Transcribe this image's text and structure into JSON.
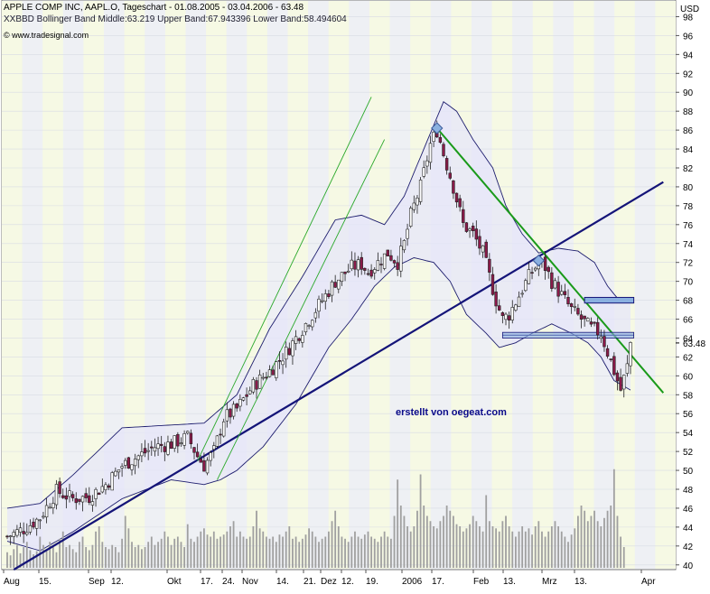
{
  "header": {
    "title_line": "APPLE COMP INC, AAPL.O, Tageschart - 01.08.2005 - 03.04.2006 - 63.48",
    "indicator_line": "XXBBD Bollinger Band Middle:63.219 Upper Band:67.943396 Lower Band:58.494604",
    "source": "© www.tradesignal.com"
  },
  "watermark": "erstellt von oegeat.com",
  "currency": "USD",
  "last_price_label": "63.48",
  "colors": {
    "background": "#ffffff",
    "plot_area": "#eef0f4",
    "alt_band": "#f6f9e4",
    "bollinger_fill": "#e6e6fa",
    "bollinger_line": "#1e1e6e",
    "candle_up": "#ffffff",
    "candle_down": "#8b1a4a",
    "trendline_support": "#141478",
    "trendline_downtrend": "#1a9a1a",
    "channel_thin": "#2aa82a",
    "volume": "#a0a0a0",
    "marker": "#8ab0e0"
  },
  "chart_data": {
    "type": "candlestick",
    "title": "APPLE COMP INC, AAPL.O, Tageschart - 01.08.2005 - 03.04.2006 - 63.48",
    "x_tick_labels": [
      "Aug",
      "15.",
      "Sep",
      "12.",
      "Okt",
      "17.",
      "24.",
      "Nov",
      "14.",
      "21.",
      "Dez",
      "12.",
      "19.",
      "2006",
      "17.",
      "Feb",
      "13.",
      "Mrz",
      "13.",
      "Apr"
    ],
    "y_tick_labels": [
      "40",
      "42",
      "44",
      "46",
      "48",
      "50",
      "52",
      "54",
      "56",
      "58",
      "60",
      "62",
      "64",
      "66",
      "68",
      "70",
      "72",
      "74",
      "76",
      "78",
      "80",
      "82",
      "84",
      "86",
      "88",
      "90",
      "92",
      "94",
      "96",
      "98"
    ],
    "ylim": [
      39.5,
      99
    ],
    "yunit": "USD",
    "last_price": 63.48,
    "bollinger_last": {
      "middle": 63.219,
      "upper": 67.943396,
      "lower": 58.494604
    },
    "close_path_approx": [
      [
        0,
        43.0
      ],
      [
        5,
        43.8
      ],
      [
        10,
        45.0
      ],
      [
        15,
        47.8
      ],
      [
        20,
        47.0
      ],
      [
        25,
        47.2
      ],
      [
        30,
        48.5
      ],
      [
        35,
        50.5
      ],
      [
        40,
        51.5
      ],
      [
        45,
        52.5
      ],
      [
        50,
        52.8
      ],
      [
        55,
        53.5
      ],
      [
        58,
        51.5
      ],
      [
        60,
        50.5
      ],
      [
        63,
        52.0
      ],
      [
        66,
        55.5
      ],
      [
        70,
        56.5
      ],
      [
        75,
        59.0
      ],
      [
        80,
        60.5
      ],
      [
        85,
        62.5
      ],
      [
        90,
        65.0
      ],
      [
        95,
        67.5
      ],
      [
        100,
        70.0
      ],
      [
        105,
        71.5
      ],
      [
        108,
        71.8
      ],
      [
        110,
        71.0
      ],
      [
        113,
        72.0
      ],
      [
        116,
        73.0
      ],
      [
        119,
        72.0
      ],
      [
        121,
        74.0
      ],
      [
        123,
        77.0
      ],
      [
        126,
        80.0
      ],
      [
        129,
        84.5
      ],
      [
        131,
        86.0
      ],
      [
        133,
        83.5
      ],
      [
        136,
        80.0
      ],
      [
        139,
        76.0
      ],
      [
        142,
        75.0
      ],
      [
        145,
        73.0
      ],
      [
        147,
        70.5
      ],
      [
        149,
        68.0
      ],
      [
        151,
        66.0
      ],
      [
        153,
        66.5
      ],
      [
        156,
        68.5
      ],
      [
        159,
        70.5
      ],
      [
        162,
        72.0
      ],
      [
        164,
        71.5
      ],
      [
        166,
        70.0
      ],
      [
        169,
        68.5
      ],
      [
        172,
        67.0
      ],
      [
        175,
        66.0
      ],
      [
        178,
        65.0
      ],
      [
        181,
        64.5
      ],
      [
        183,
        62.5
      ],
      [
        185,
        60.5
      ],
      [
        187,
        58.5
      ],
      [
        189,
        61.0
      ],
      [
        190,
        63.5
      ]
    ],
    "bollinger_upper_approx": [
      [
        0,
        46.0
      ],
      [
        10,
        46.5
      ],
      [
        20,
        49.5
      ],
      [
        35,
        54.5
      ],
      [
        50,
        54.8
      ],
      [
        60,
        55.0
      ],
      [
        70,
        58.0
      ],
      [
        80,
        65.0
      ],
      [
        90,
        70.5
      ],
      [
        100,
        76.5
      ],
      [
        108,
        77.0
      ],
      [
        115,
        76.0
      ],
      [
        121,
        79.0
      ],
      [
        127,
        84.0
      ],
      [
        133,
        89.0
      ],
      [
        137,
        88.0
      ],
      [
        142,
        85.0
      ],
      [
        148,
        82.0
      ],
      [
        152,
        78.0
      ],
      [
        157,
        75.0
      ],
      [
        162,
        73.0
      ],
      [
        168,
        73.5
      ],
      [
        174,
        73.2
      ],
      [
        179,
        72.0
      ],
      [
        183,
        69.5
      ],
      [
        187,
        67.8
      ],
      [
        190,
        67.9
      ]
    ],
    "bollinger_lower_approx": [
      [
        0,
        42.5
      ],
      [
        10,
        41.5
      ],
      [
        20,
        43.5
      ],
      [
        35,
        47.0
      ],
      [
        50,
        49.0
      ],
      [
        60,
        48.5
      ],
      [
        65,
        49.0
      ],
      [
        70,
        50.0
      ],
      [
        78,
        52.5
      ],
      [
        88,
        57.0
      ],
      [
        98,
        63.0
      ],
      [
        105,
        66.0
      ],
      [
        112,
        69.5
      ],
      [
        118,
        71.5
      ],
      [
        124,
        72.5
      ],
      [
        130,
        72.0
      ],
      [
        135,
        70.0
      ],
      [
        140,
        66.5
      ],
      [
        146,
        64.5
      ],
      [
        150,
        63.0
      ],
      [
        155,
        63.5
      ],
      [
        160,
        64.5
      ],
      [
        166,
        65.5
      ],
      [
        172,
        64.5
      ],
      [
        177,
        63.5
      ],
      [
        181,
        62.0
      ],
      [
        185,
        59.5
      ],
      [
        190,
        58.5
      ]
    ],
    "volume_relative": [
      0.15,
      0.12,
      0.18,
      0.22,
      0.14,
      0.2,
      0.25,
      0.17,
      0.13,
      0.16,
      0.3,
      0.22,
      0.18,
      0.25,
      0.2,
      0.15,
      0.28,
      0.35,
      0.2,
      0.22,
      0.18,
      0.15,
      0.25,
      0.3,
      0.2,
      0.17,
      0.22,
      0.35,
      0.4,
      0.25,
      0.2,
      0.18,
      0.22,
      0.2,
      0.15,
      0.28,
      0.5,
      0.38,
      0.25,
      0.2,
      0.22,
      0.18,
      0.2,
      0.25,
      0.3,
      0.22,
      0.25,
      0.28,
      0.35,
      0.3,
      0.22,
      0.28,
      0.3,
      0.25,
      0.2,
      0.42,
      0.28,
      0.25,
      0.3,
      0.35,
      0.38,
      0.32,
      0.3,
      0.35,
      0.28,
      0.3,
      0.32,
      0.35,
      0.4,
      0.45,
      0.3,
      0.35,
      0.3,
      0.28,
      0.3,
      0.4,
      0.55,
      0.38,
      0.35,
      0.3,
      0.28,
      0.3,
      0.25,
      0.32,
      0.3,
      0.35,
      0.4,
      0.28,
      0.3,
      0.25,
      0.28,
      0.32,
      0.38,
      0.35,
      0.3,
      0.25,
      0.28,
      0.3,
      0.35,
      0.45,
      0.55,
      0.4,
      0.3,
      0.28,
      0.25,
      0.3,
      0.35,
      0.3,
      0.28,
      0.32,
      0.35,
      0.3,
      0.28,
      0.25,
      0.3,
      0.35,
      0.3,
      0.28,
      0.5,
      0.85,
      0.6,
      0.5,
      0.4,
      0.35,
      0.4,
      0.55,
      0.9,
      0.6,
      0.5,
      0.45,
      0.4,
      0.38,
      0.45,
      0.5,
      0.6,
      0.55,
      0.5,
      0.42,
      0.4,
      0.35,
      0.38,
      0.42,
      0.5,
      0.45,
      0.4,
      0.35,
      0.7,
      0.45,
      0.4,
      0.38,
      0.35,
      0.45,
      0.5,
      0.4,
      0.35,
      0.3,
      0.35,
      0.4,
      0.35,
      0.38,
      0.32,
      0.4,
      0.45,
      0.35,
      0.3,
      0.35,
      0.4,
      0.45,
      0.4,
      0.35,
      0.3,
      0.25,
      0.32,
      0.38,
      0.5,
      0.6,
      0.55,
      0.45,
      0.5,
      0.55,
      0.45,
      0.4,
      0.48,
      0.55,
      0.6,
      0.95,
      0.5,
      0.3,
      0.2
    ]
  }
}
